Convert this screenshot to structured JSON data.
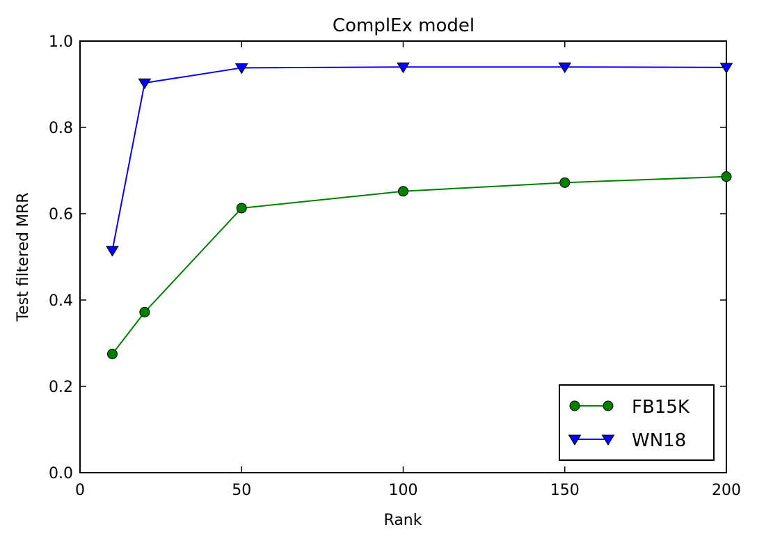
{
  "chart_data": {
    "type": "line",
    "title": "ComplEx model",
    "xlabel": "Rank",
    "ylabel": "Test filtered MRR",
    "xlim": [
      0,
      200
    ],
    "ylim": [
      0.0,
      1.0
    ],
    "x_ticks": [
      "0",
      "50",
      "100",
      "150",
      "200"
    ],
    "y_ticks": [
      "0.0",
      "0.2",
      "0.4",
      "0.6",
      "0.8",
      "1.0"
    ],
    "grid": false,
    "legend_position": "lower-right",
    "series": [
      {
        "name": "FB15K",
        "color": "#008000",
        "marker": "circle",
        "x": [
          10,
          20,
          50,
          100,
          150,
          200
        ],
        "y": [
          0.275,
          0.372,
          0.613,
          0.652,
          0.672,
          0.686
        ]
      },
      {
        "name": "WN18",
        "color": "#0000ff",
        "marker": "triangle-down",
        "x": [
          10,
          20,
          50,
          100,
          150,
          200
        ],
        "y": [
          0.515,
          0.903,
          0.938,
          0.94,
          0.94,
          0.939
        ]
      }
    ]
  }
}
